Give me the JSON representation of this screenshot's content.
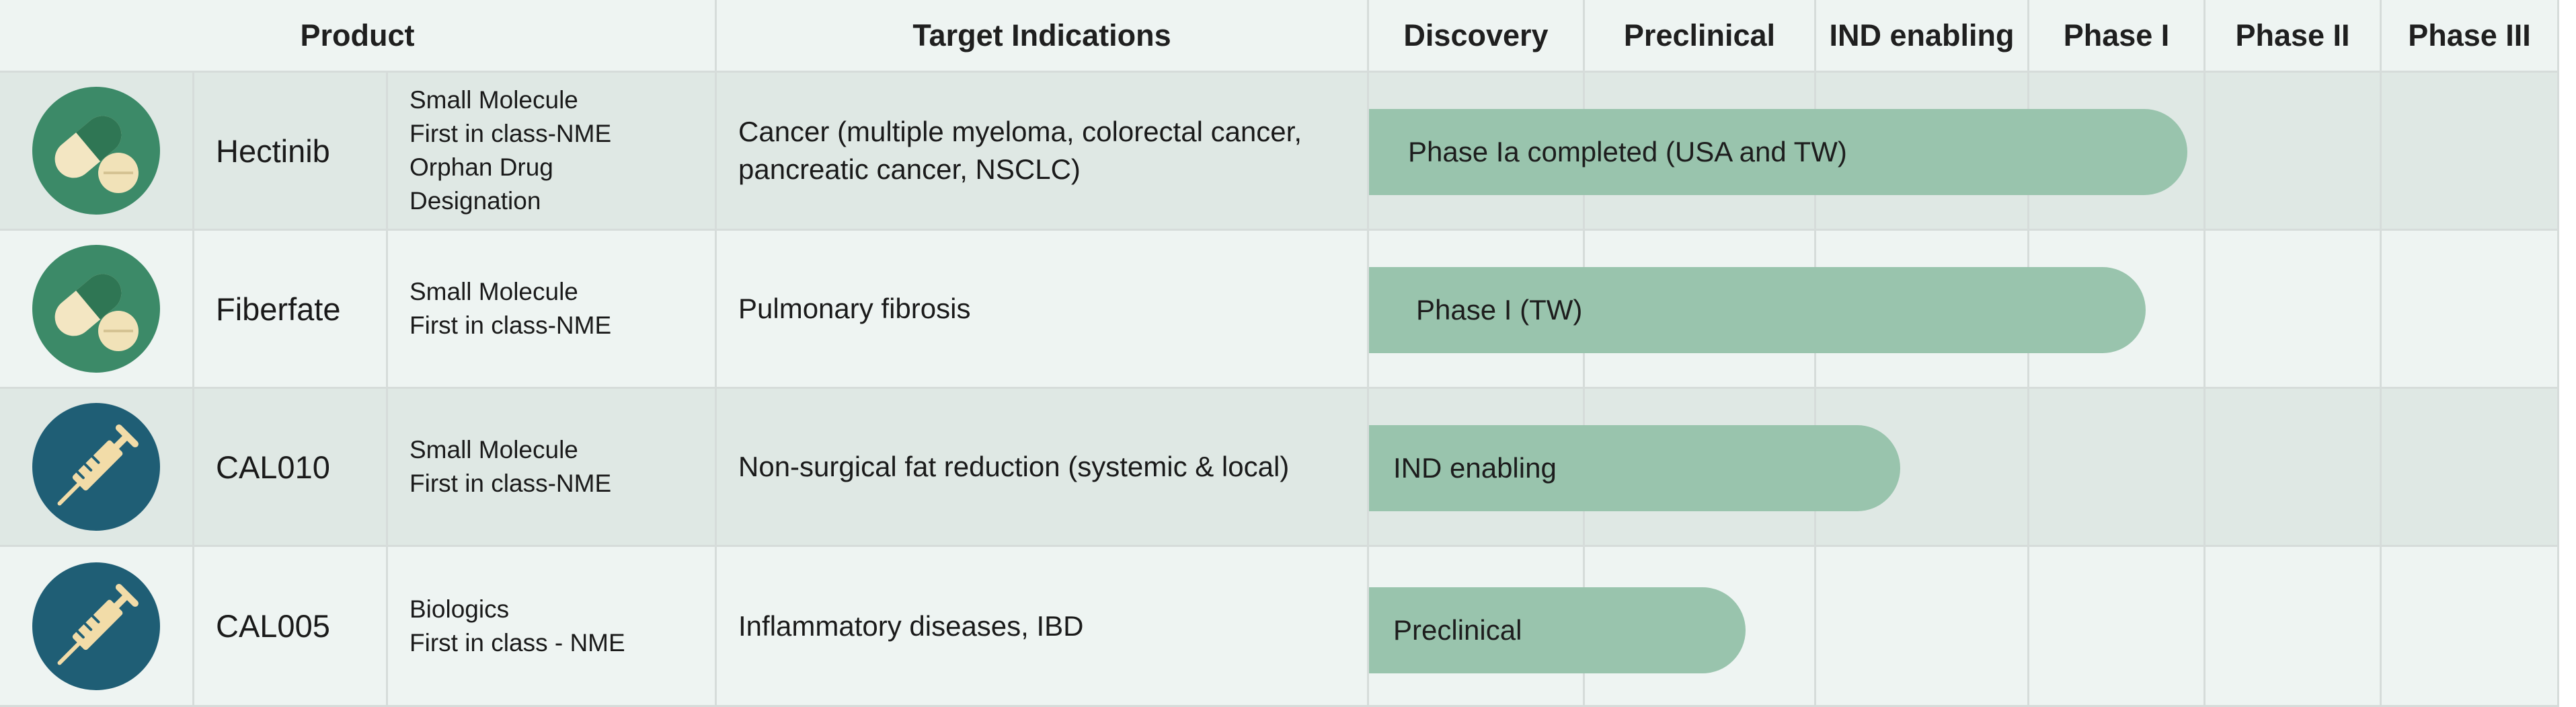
{
  "headers": {
    "product": "Product",
    "target_indications": "Target Indications",
    "phases": [
      "Discovery",
      "Preclinical",
      "IND enabling",
      "Phase I",
      "Phase II",
      "Phase III"
    ]
  },
  "colors": {
    "header_bg": "#eef4f2",
    "row_dark_bg": "#dfe8e4",
    "row_light_bg": "#eef4f2",
    "bar": "#99c4ad",
    "pill_icon_bg": "#3c8a68",
    "syringe_icon_bg": "#1f5e75"
  },
  "rows": [
    {
      "icon": "pill-icon",
      "name": "Hectinib",
      "type_lines": [
        "Small Molecule",
        "First in class-NME",
        "Orphan Drug",
        "Designation"
      ],
      "indication": "Cancer (multiple myeloma, colorectal cancer, pancreatic cancer, NSCLC)",
      "status": "Phase Ia completed (USA and TW)"
    },
    {
      "icon": "pill-icon",
      "name": "Fiberfate",
      "type_lines": [
        "Small Molecule",
        "First in class-NME"
      ],
      "indication": "Pulmonary fibrosis",
      "status": "Phase I (TW)"
    },
    {
      "icon": "syringe-icon",
      "name": "CAL010",
      "type_lines": [
        "Small Molecule",
        "First in class-NME"
      ],
      "indication": "Non-surgical fat reduction (systemic & local)",
      "status": "IND enabling"
    },
    {
      "icon": "syringe-icon",
      "name": "CAL005",
      "type_lines": [
        "Biologics",
        "First in class - NME"
      ],
      "indication": "Inflammatory diseases, IBD",
      "status": "Preclinical"
    }
  ]
}
